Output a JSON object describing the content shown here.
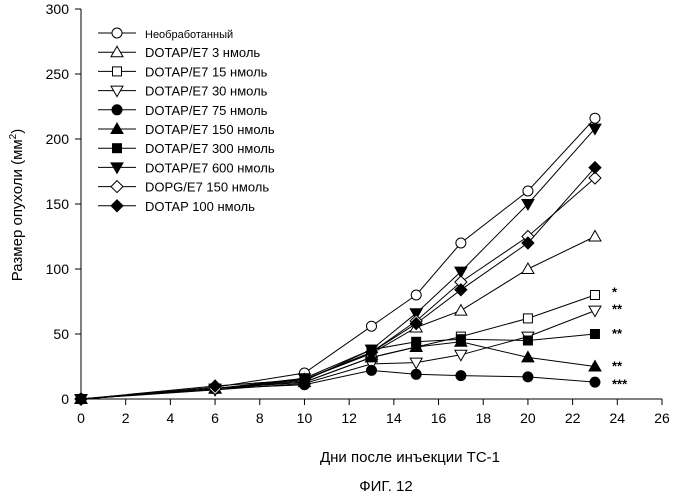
{
  "chart_data": {
    "type": "line",
    "xlabel": "Дни после инъекции ТС-1",
    "ylabel": "Размер опухоли (мм",
    "ylabel_sup": "2",
    "ylabel_close": ")",
    "caption": "ФИГ. 12",
    "xlim": [
      0,
      26
    ],
    "ylim": [
      0,
      300
    ],
    "xticks": [
      "0",
      "2",
      "4",
      "6",
      "8",
      "10",
      "12",
      "14",
      "16",
      "18",
      "20",
      "22",
      "24",
      "26"
    ],
    "yticks": [
      "0",
      "50",
      "100",
      "150",
      "200",
      "250",
      "300"
    ],
    "grid": false,
    "legend_position": "top-left",
    "series": [
      {
        "name": "Необработанный",
        "marker": "circle-open",
        "x": [
          0,
          6,
          10,
          13,
          15,
          17,
          20,
          23
        ],
        "y": [
          0,
          9,
          20,
          56,
          80,
          120,
          160,
          216
        ]
      },
      {
        "name": "DOTAP/E7  3 нмоль",
        "marker": "triangle-up-open",
        "x": [
          0,
          6,
          10,
          13,
          15,
          17,
          20,
          23
        ],
        "y": [
          0,
          8,
          15,
          35,
          55,
          68,
          100,
          125
        ]
      },
      {
        "name": "DOTAP/E7  15 нмоль",
        "marker": "square-open",
        "x": [
          0,
          6,
          10,
          13,
          15,
          17,
          20,
          23
        ],
        "y": [
          0,
          8,
          13,
          32,
          40,
          48,
          62,
          80
        ]
      },
      {
        "name": "DOTAP/E7  30 нмоль",
        "marker": "triangle-down-open",
        "x": [
          0,
          6,
          10,
          13,
          15,
          17,
          20,
          23
        ],
        "y": [
          0,
          7,
          12,
          27,
          28,
          34,
          48,
          68
        ]
      },
      {
        "name": "DOTAP/E7  75 нмоль",
        "marker": "circle-filled",
        "x": [
          0,
          6,
          10,
          13,
          15,
          17,
          20,
          23
        ],
        "y": [
          0,
          8,
          11,
          22,
          19,
          18,
          17,
          13
        ]
      },
      {
        "name": "DOTAP/E7  150 нмоль",
        "marker": "triangle-up-filled",
        "x": [
          0,
          6,
          10,
          13,
          15,
          17,
          20,
          23
        ],
        "y": [
          0,
          8,
          13,
          32,
          40,
          44,
          32,
          25
        ]
      },
      {
        "name": "DOTAP/E7  300 нмоль",
        "marker": "square-filled",
        "x": [
          0,
          6,
          10,
          13,
          15,
          17,
          20,
          23
        ],
        "y": [
          0,
          8,
          14,
          38,
          44,
          46,
          45,
          50
        ]
      },
      {
        "name": "DOTAP/E7  600 нмоль",
        "marker": "triangle-down-filled",
        "x": [
          0,
          6,
          10,
          13,
          15,
          17,
          20,
          23
        ],
        "y": [
          0,
          8,
          16,
          38,
          66,
          98,
          150,
          208
        ]
      },
      {
        "name": "DOPG/E7 150 нмоль",
        "marker": "diamond-open",
        "x": [
          0,
          6,
          10,
          13,
          15,
          17,
          20,
          23
        ],
        "y": [
          0,
          8,
          15,
          36,
          60,
          90,
          125,
          170
        ]
      },
      {
        "name": "DOTAP 100 нмоль",
        "marker": "diamond-filled",
        "x": [
          0,
          6,
          10,
          13,
          15,
          17,
          20,
          23
        ],
        "y": [
          0,
          10,
          15,
          36,
          58,
          84,
          120,
          178
        ]
      }
    ],
    "annotations": [
      {
        "text": "*",
        "x": 23,
        "y": 82
      },
      {
        "text": "**",
        "x": 23,
        "y": 69
      },
      {
        "text": "**",
        "x": 23,
        "y": 50
      },
      {
        "text": "**",
        "x": 23,
        "y": 25
      },
      {
        "text": "***",
        "x": 23,
        "y": 11
      }
    ]
  }
}
